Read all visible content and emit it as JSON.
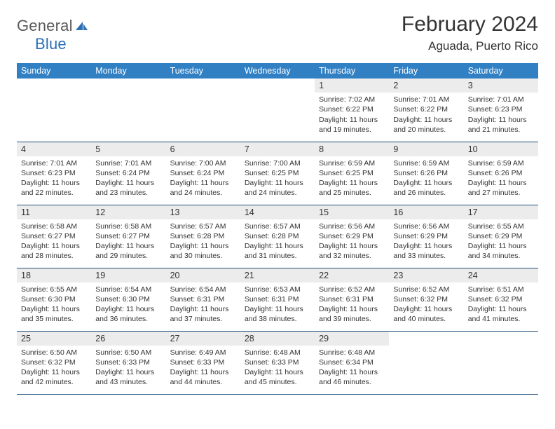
{
  "logo": {
    "word1": "General",
    "word2": "Blue"
  },
  "title": "February 2024",
  "location": "Aguada, Puerto Rico",
  "colors": {
    "header_bg": "#3180c4",
    "header_text": "#ffffff",
    "daynum_bg": "#ececec",
    "body_text": "#333333",
    "row_border": "#1f4f7c",
    "logo_gray": "#5a5a5a",
    "logo_blue": "#2b6fb5"
  },
  "weekdays": [
    "Sunday",
    "Monday",
    "Tuesday",
    "Wednesday",
    "Thursday",
    "Friday",
    "Saturday"
  ],
  "weeks": [
    [
      null,
      null,
      null,
      null,
      {
        "n": "1",
        "sr": "Sunrise: 7:02 AM",
        "ss": "Sunset: 6:22 PM",
        "dl": "Daylight: 11 hours and 19 minutes."
      },
      {
        "n": "2",
        "sr": "Sunrise: 7:01 AM",
        "ss": "Sunset: 6:22 PM",
        "dl": "Daylight: 11 hours and 20 minutes."
      },
      {
        "n": "3",
        "sr": "Sunrise: 7:01 AM",
        "ss": "Sunset: 6:23 PM",
        "dl": "Daylight: 11 hours and 21 minutes."
      }
    ],
    [
      {
        "n": "4",
        "sr": "Sunrise: 7:01 AM",
        "ss": "Sunset: 6:23 PM",
        "dl": "Daylight: 11 hours and 22 minutes."
      },
      {
        "n": "5",
        "sr": "Sunrise: 7:01 AM",
        "ss": "Sunset: 6:24 PM",
        "dl": "Daylight: 11 hours and 23 minutes."
      },
      {
        "n": "6",
        "sr": "Sunrise: 7:00 AM",
        "ss": "Sunset: 6:24 PM",
        "dl": "Daylight: 11 hours and 24 minutes."
      },
      {
        "n": "7",
        "sr": "Sunrise: 7:00 AM",
        "ss": "Sunset: 6:25 PM",
        "dl": "Daylight: 11 hours and 24 minutes."
      },
      {
        "n": "8",
        "sr": "Sunrise: 6:59 AM",
        "ss": "Sunset: 6:25 PM",
        "dl": "Daylight: 11 hours and 25 minutes."
      },
      {
        "n": "9",
        "sr": "Sunrise: 6:59 AM",
        "ss": "Sunset: 6:26 PM",
        "dl": "Daylight: 11 hours and 26 minutes."
      },
      {
        "n": "10",
        "sr": "Sunrise: 6:59 AM",
        "ss": "Sunset: 6:26 PM",
        "dl": "Daylight: 11 hours and 27 minutes."
      }
    ],
    [
      {
        "n": "11",
        "sr": "Sunrise: 6:58 AM",
        "ss": "Sunset: 6:27 PM",
        "dl": "Daylight: 11 hours and 28 minutes."
      },
      {
        "n": "12",
        "sr": "Sunrise: 6:58 AM",
        "ss": "Sunset: 6:27 PM",
        "dl": "Daylight: 11 hours and 29 minutes."
      },
      {
        "n": "13",
        "sr": "Sunrise: 6:57 AM",
        "ss": "Sunset: 6:28 PM",
        "dl": "Daylight: 11 hours and 30 minutes."
      },
      {
        "n": "14",
        "sr": "Sunrise: 6:57 AM",
        "ss": "Sunset: 6:28 PM",
        "dl": "Daylight: 11 hours and 31 minutes."
      },
      {
        "n": "15",
        "sr": "Sunrise: 6:56 AM",
        "ss": "Sunset: 6:29 PM",
        "dl": "Daylight: 11 hours and 32 minutes."
      },
      {
        "n": "16",
        "sr": "Sunrise: 6:56 AM",
        "ss": "Sunset: 6:29 PM",
        "dl": "Daylight: 11 hours and 33 minutes."
      },
      {
        "n": "17",
        "sr": "Sunrise: 6:55 AM",
        "ss": "Sunset: 6:29 PM",
        "dl": "Daylight: 11 hours and 34 minutes."
      }
    ],
    [
      {
        "n": "18",
        "sr": "Sunrise: 6:55 AM",
        "ss": "Sunset: 6:30 PM",
        "dl": "Daylight: 11 hours and 35 minutes."
      },
      {
        "n": "19",
        "sr": "Sunrise: 6:54 AM",
        "ss": "Sunset: 6:30 PM",
        "dl": "Daylight: 11 hours and 36 minutes."
      },
      {
        "n": "20",
        "sr": "Sunrise: 6:54 AM",
        "ss": "Sunset: 6:31 PM",
        "dl": "Daylight: 11 hours and 37 minutes."
      },
      {
        "n": "21",
        "sr": "Sunrise: 6:53 AM",
        "ss": "Sunset: 6:31 PM",
        "dl": "Daylight: 11 hours and 38 minutes."
      },
      {
        "n": "22",
        "sr": "Sunrise: 6:52 AM",
        "ss": "Sunset: 6:31 PM",
        "dl": "Daylight: 11 hours and 39 minutes."
      },
      {
        "n": "23",
        "sr": "Sunrise: 6:52 AM",
        "ss": "Sunset: 6:32 PM",
        "dl": "Daylight: 11 hours and 40 minutes."
      },
      {
        "n": "24",
        "sr": "Sunrise: 6:51 AM",
        "ss": "Sunset: 6:32 PM",
        "dl": "Daylight: 11 hours and 41 minutes."
      }
    ],
    [
      {
        "n": "25",
        "sr": "Sunrise: 6:50 AM",
        "ss": "Sunset: 6:32 PM",
        "dl": "Daylight: 11 hours and 42 minutes."
      },
      {
        "n": "26",
        "sr": "Sunrise: 6:50 AM",
        "ss": "Sunset: 6:33 PM",
        "dl": "Daylight: 11 hours and 43 minutes."
      },
      {
        "n": "27",
        "sr": "Sunrise: 6:49 AM",
        "ss": "Sunset: 6:33 PM",
        "dl": "Daylight: 11 hours and 44 minutes."
      },
      {
        "n": "28",
        "sr": "Sunrise: 6:48 AM",
        "ss": "Sunset: 6:33 PM",
        "dl": "Daylight: 11 hours and 45 minutes."
      },
      {
        "n": "29",
        "sr": "Sunrise: 6:48 AM",
        "ss": "Sunset: 6:34 PM",
        "dl": "Daylight: 11 hours and 46 minutes."
      },
      null,
      null
    ]
  ]
}
